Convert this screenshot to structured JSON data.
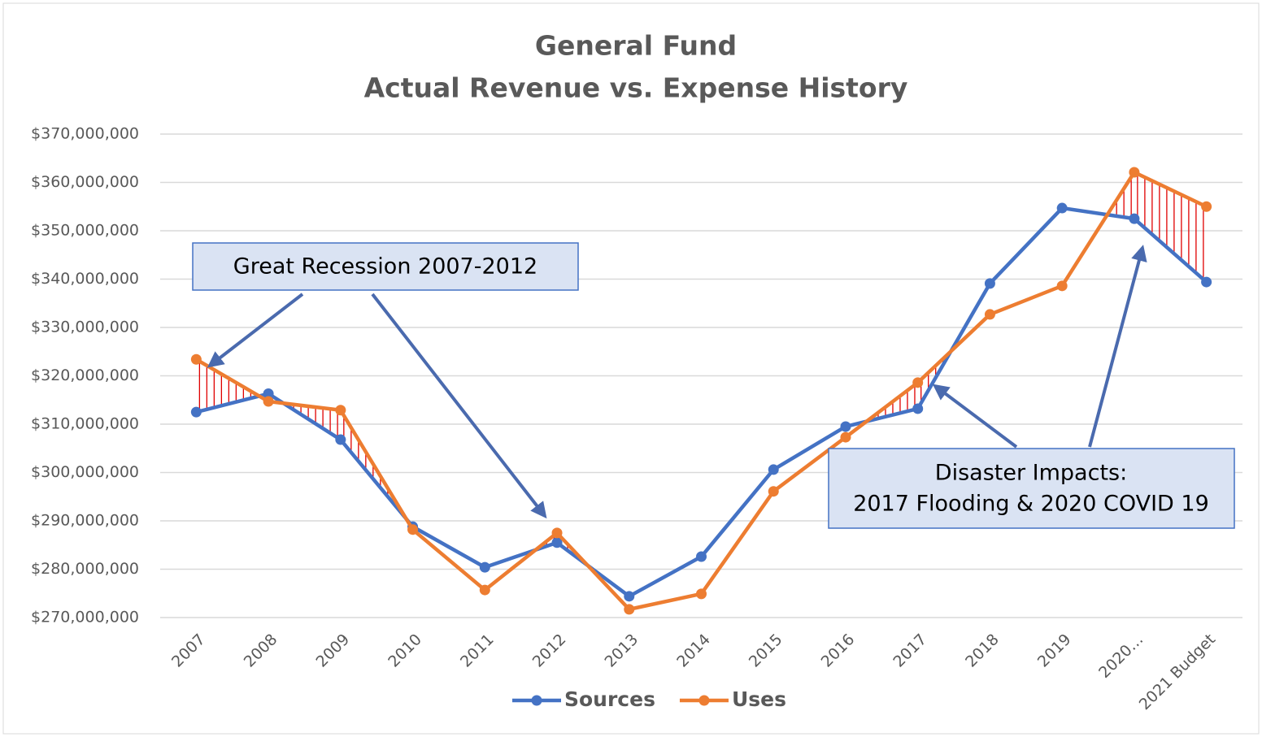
{
  "chart_data": {
    "type": "line",
    "title": "General Fund",
    "subtitle": "Actual Revenue vs. Expense History",
    "categories": [
      "2007",
      "2008",
      "2009",
      "2010",
      "2011",
      "2012",
      "2013",
      "2014",
      "2015",
      "2016",
      "2017",
      "2018",
      "2019",
      "2020…",
      "2021 Budget"
    ],
    "series": [
      {
        "name": "Sources",
        "color": "#4472c4",
        "values": [
          312500000,
          316300000,
          306800000,
          288800000,
          280400000,
          285500000,
          274400000,
          282600000,
          300600000,
          309500000,
          313200000,
          339100000,
          354700000,
          352500000,
          339400000
        ]
      },
      {
        "name": "Uses",
        "color": "#ed7d31",
        "values": [
          323400000,
          314700000,
          312900000,
          288200000,
          275700000,
          287500000,
          271700000,
          274900000,
          296100000,
          307300000,
          318600000,
          332700000,
          338600000,
          362100000,
          355000000
        ]
      }
    ],
    "ylim": [
      270000000,
      370000000
    ],
    "yticks": [
      {
        "value": 270000000,
        "label": "$270,000,000"
      },
      {
        "value": 280000000,
        "label": "$280,000,000"
      },
      {
        "value": 290000000,
        "label": "$290,000,000"
      },
      {
        "value": 300000000,
        "label": "$300,000,000"
      },
      {
        "value": 310000000,
        "label": "$310,000,000"
      },
      {
        "value": 320000000,
        "label": "$320,000,000"
      },
      {
        "value": 330000000,
        "label": "$330,000,000"
      },
      {
        "value": 340000000,
        "label": "$340,000,000"
      },
      {
        "value": 350000000,
        "label": "$350,000,000"
      },
      {
        "value": 360000000,
        "label": "$360,000,000"
      },
      {
        "value": 370000000,
        "label": "$370,000,000"
      }
    ],
    "grid": true,
    "legend": "bottom",
    "annotations": [
      "Great Recession 2007-2012",
      "Disaster Impacts:",
      "2017 Flooding & 2020 COVID 19"
    ]
  }
}
